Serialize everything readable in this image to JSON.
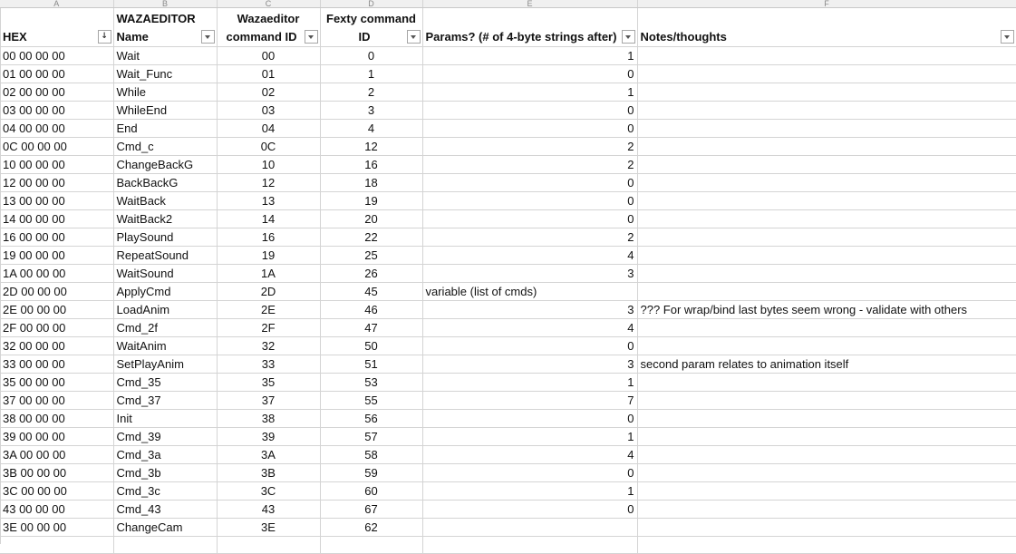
{
  "column_letters": [
    "A",
    "B",
    "C",
    "D",
    "E",
    "F"
  ],
  "headers": {
    "hex": {
      "line1": "",
      "line2": "HEX"
    },
    "name": {
      "line1": "WAZAEDITOR",
      "line2": "Name"
    },
    "waza_id": {
      "line1": "Wazaeditor",
      "line2": "command ID"
    },
    "fexty_id": {
      "line1": "Fexty command",
      "line2": "ID"
    },
    "params": {
      "line1": "",
      "line2": "Params? (# of 4-byte strings after)"
    },
    "notes": {
      "line1": "",
      "line2": "Notes/thoughts"
    }
  },
  "filter_state": {
    "hex": "sorted-ascending",
    "others": "dropdown"
  },
  "rows": [
    {
      "hex": "00 00 00 00",
      "name": "Wait",
      "waza_id": "00",
      "fexty_id": "0",
      "params": "1",
      "notes": ""
    },
    {
      "hex": "01 00 00 00",
      "name": "Wait_Func",
      "waza_id": "01",
      "fexty_id": "1",
      "params": "0",
      "notes": ""
    },
    {
      "hex": "02 00 00 00",
      "name": "While",
      "waza_id": "02",
      "fexty_id": "2",
      "params": "1",
      "notes": ""
    },
    {
      "hex": "03 00 00 00",
      "name": "WhileEnd",
      "waza_id": "03",
      "fexty_id": "3",
      "params": "0",
      "notes": ""
    },
    {
      "hex": "04 00 00 00",
      "name": "End",
      "waza_id": "04",
      "fexty_id": "4",
      "params": "0",
      "notes": ""
    },
    {
      "hex": "0C 00 00 00",
      "name": "Cmd_c",
      "waza_id": "0C",
      "fexty_id": "12",
      "params": "2",
      "notes": ""
    },
    {
      "hex": "10 00 00 00",
      "name": "ChangeBackG",
      "waza_id": "10",
      "fexty_id": "16",
      "params": "2",
      "notes": ""
    },
    {
      "hex": "12 00 00 00",
      "name": "BackBackG",
      "waza_id": "12",
      "fexty_id": "18",
      "params": "0",
      "notes": ""
    },
    {
      "hex": "13 00 00 00",
      "name": "WaitBack",
      "waza_id": "13",
      "fexty_id": "19",
      "params": "0",
      "notes": ""
    },
    {
      "hex": "14 00 00 00",
      "name": "WaitBack2",
      "waza_id": "14",
      "fexty_id": "20",
      "params": "0",
      "notes": ""
    },
    {
      "hex": "16 00 00 00",
      "name": "PlaySound",
      "waza_id": "16",
      "fexty_id": "22",
      "params": "2",
      "notes": ""
    },
    {
      "hex": "19 00 00 00",
      "name": "RepeatSound",
      "waza_id": "19",
      "fexty_id": "25",
      "params": "4",
      "notes": ""
    },
    {
      "hex": "1A 00 00 00",
      "name": "WaitSound",
      "waza_id": "1A",
      "fexty_id": "26",
      "params": "3",
      "notes": ""
    },
    {
      "hex": "2D 00 00 00",
      "name": "ApplyCmd",
      "waza_id": "2D",
      "fexty_id": "45",
      "params": "variable (list of cmds)",
      "params_align": "left",
      "notes": ""
    },
    {
      "hex": "2E 00 00 00",
      "name": "LoadAnim",
      "waza_id": "2E",
      "fexty_id": "46",
      "params": "3",
      "notes": "??? For wrap/bind last bytes seem wrong - validate with others"
    },
    {
      "hex": "2F 00 00 00",
      "name": "Cmd_2f",
      "waza_id": "2F",
      "fexty_id": "47",
      "params": "4",
      "notes": ""
    },
    {
      "hex": "32 00 00 00",
      "name": "WaitAnim",
      "waza_id": "32",
      "fexty_id": "50",
      "params": "0",
      "notes": ""
    },
    {
      "hex": "33 00 00 00",
      "name": "SetPlayAnim",
      "waza_id": "33",
      "fexty_id": "51",
      "params": "3",
      "notes": "second param relates to animation itself"
    },
    {
      "hex": "35 00 00 00",
      "name": "Cmd_35",
      "waza_id": "35",
      "fexty_id": "53",
      "params": "1",
      "notes": ""
    },
    {
      "hex": "37 00 00 00",
      "name": "Cmd_37",
      "waza_id": "37",
      "fexty_id": "55",
      "params": "7",
      "notes": ""
    },
    {
      "hex": "38 00 00 00",
      "name": "Init",
      "waza_id": "38",
      "fexty_id": "56",
      "params": "0",
      "notes": ""
    },
    {
      "hex": "39 00 00 00",
      "name": "Cmd_39",
      "waza_id": "39",
      "fexty_id": "57",
      "params": "1",
      "notes": ""
    },
    {
      "hex": "3A 00 00 00",
      "name": "Cmd_3a",
      "waza_id": "3A",
      "fexty_id": "58",
      "params": "4",
      "notes": ""
    },
    {
      "hex": "3B 00 00 00",
      "name": "Cmd_3b",
      "waza_id": "3B",
      "fexty_id": "59",
      "params": "0",
      "notes": ""
    },
    {
      "hex": "3C 00 00 00",
      "name": "Cmd_3c",
      "waza_id": "3C",
      "fexty_id": "60",
      "params": "1",
      "notes": ""
    },
    {
      "hex": "43 00 00 00",
      "name": "Cmd_43",
      "waza_id": "43",
      "fexty_id": "67",
      "params": "0",
      "notes": ""
    },
    {
      "hex": "3E 00 00 00",
      "name": "ChangeCam",
      "waza_id": "3E",
      "fexty_id": "62",
      "params": "",
      "notes": ""
    }
  ]
}
